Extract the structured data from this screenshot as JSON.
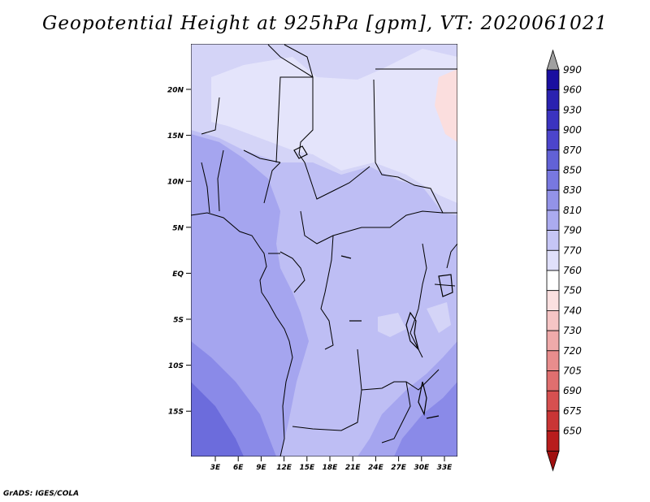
{
  "title": "Geopotential Height at 925hPa [gpm], VT: 2020061021",
  "credit": "GrADS: IGES/COLA",
  "map": {
    "y_ticks": [
      "20N",
      "15N",
      "10N",
      "5N",
      "EQ",
      "5S",
      "10S",
      "15S"
    ],
    "x_ticks": [
      "3E",
      "6E",
      "9E",
      "12E",
      "15E",
      "18E",
      "21E",
      "24E",
      "27E",
      "30E",
      "33E"
    ],
    "colors": {
      "c770": "#e4e4fb",
      "c790": "#d4d4f7",
      "c810": "#bebef4",
      "c830": "#a5a5ef",
      "c850": "#8a8ae8",
      "c870": "#6c6cdc",
      "c750": "#fbdede"
    }
  },
  "colorbar": {
    "levels": [
      "990",
      "960",
      "930",
      "900",
      "870",
      "850",
      "830",
      "810",
      "790",
      "770",
      "760",
      "750",
      "740",
      "730",
      "720",
      "705",
      "690",
      "675",
      "650"
    ],
    "colors": [
      "#1a0fa0",
      "#2a22b0",
      "#3b33c0",
      "#4c45cc",
      "#6262d6",
      "#7878e0",
      "#9393e8",
      "#ababef",
      "#c6c6f6",
      "#e0e0fb",
      "#ffffff",
      "#fbe0e0",
      "#f6c5c5",
      "#efaaaa",
      "#e88d8d",
      "#e06f6f",
      "#d65050",
      "#c93535",
      "#b81d1d",
      "#a01010"
    ],
    "top_arrow_color": "#a0a0a0",
    "bottom_arrow_color": "#a01010"
  }
}
